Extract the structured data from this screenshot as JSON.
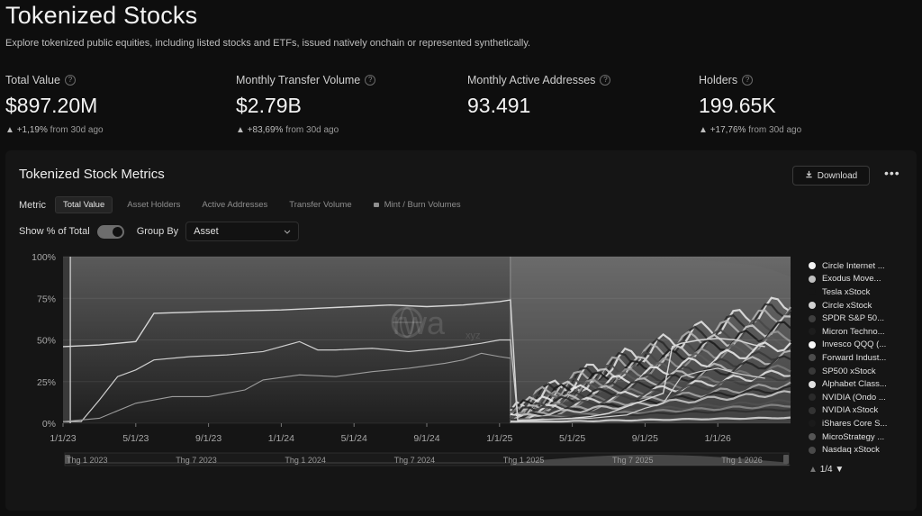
{
  "page": {
    "title": "Tokenized Stocks",
    "subtitle": "Explore tokenized public equities, including listed stocks and ETFs, issued natively onchain or represented synthetically."
  },
  "kpis": [
    {
      "label": "Total Value",
      "value": "$897.20M",
      "change_arrow": "▲",
      "change": "+1,19%",
      "suffix": "from 30d ago"
    },
    {
      "label": "Monthly Transfer Volume",
      "value": "$2.79B",
      "change_arrow": "▲",
      "change": "+83,69%",
      "suffix": "from 30d ago"
    },
    {
      "label": "Monthly Active Addresses",
      "value": "93.491",
      "change_arrow": "",
      "change": "",
      "suffix": ""
    },
    {
      "label": "Holders",
      "value": "199.65K",
      "change_arrow": "▲",
      "change": "+17,76%",
      "suffix": "from 30d ago"
    }
  ],
  "panel": {
    "title": "Tokenized Stock Metrics",
    "download_label": "Download",
    "more_label": "•••",
    "metric_label": "Metric",
    "tabs": [
      {
        "label": "Total Value",
        "active": true
      },
      {
        "label": "Asset Holders",
        "active": false
      },
      {
        "label": "Active Addresses",
        "active": false
      },
      {
        "label": "Transfer Volume",
        "active": false
      },
      {
        "label": "Mint / Burn Volumes",
        "active": false,
        "locked": true
      }
    ],
    "show_pct_label": "Show % of Total",
    "show_pct_on": true,
    "group_by_label": "Group By",
    "group_by_value": "Asset",
    "watermark": "rwa",
    "watermark_suffix": "xyz"
  },
  "chart_data": {
    "type": "area",
    "stacked": true,
    "percent_of_total": true,
    "y_ticks": [
      "0%",
      "25%",
      "50%",
      "75%",
      "100%"
    ],
    "ylim": [
      0,
      100
    ],
    "x_ticks": [
      "1/1/23",
      "5/1/23",
      "9/1/23",
      "1/1/24",
      "5/1/24",
      "9/1/24",
      "1/1/25",
      "5/1/25",
      "9/1/25",
      "1/1/26"
    ],
    "navigator_ticks": [
      "Thg 1 2023",
      "Thg 7 2023",
      "Thg 1 2024",
      "Thg 7 2024",
      "Thg 1 2025",
      "Thg 7 2025",
      "Thg 1 2026"
    ],
    "top_line": [
      [
        0,
        46
      ],
      [
        2,
        47
      ],
      [
        4,
        49
      ],
      [
        5,
        66
      ],
      [
        8,
        67
      ],
      [
        12,
        68
      ],
      [
        14,
        69
      ],
      [
        16,
        70
      ],
      [
        18,
        71
      ],
      [
        20,
        70
      ],
      [
        22,
        71
      ],
      [
        24,
        73
      ],
      [
        24.6,
        74
      ],
      [
        25,
        1.5
      ],
      [
        26,
        2
      ],
      [
        28,
        3
      ],
      [
        29,
        4
      ],
      [
        30,
        6
      ],
      [
        31,
        10
      ],
      [
        32,
        14
      ],
      [
        33,
        18
      ],
      [
        33.5,
        46
      ],
      [
        34,
        48
      ],
      [
        35,
        50
      ],
      [
        36,
        51
      ],
      [
        37,
        50
      ],
      [
        38,
        47
      ],
      [
        38.6,
        46
      ]
    ],
    "mid_line": [
      [
        0,
        1
      ],
      [
        1,
        1
      ],
      [
        2,
        14
      ],
      [
        3,
        28
      ],
      [
        4,
        32
      ],
      [
        5,
        38
      ],
      [
        7,
        40
      ],
      [
        9,
        41
      ],
      [
        11,
        43
      ],
      [
        13,
        49
      ],
      [
        14,
        44
      ],
      [
        15,
        44
      ],
      [
        17,
        45
      ],
      [
        19,
        43
      ],
      [
        21,
        45
      ],
      [
        23,
        48
      ],
      [
        24,
        50
      ],
      [
        24.6,
        50
      ],
      [
        25,
        2
      ],
      [
        27,
        2.5
      ],
      [
        29,
        3
      ],
      [
        31,
        5
      ],
      [
        32,
        9
      ],
      [
        33,
        12
      ],
      [
        34,
        28
      ],
      [
        35,
        31
      ],
      [
        36,
        33
      ],
      [
        37,
        30
      ],
      [
        38,
        28
      ],
      [
        38.6,
        27
      ]
    ],
    "low_line": [
      [
        0,
        1
      ],
      [
        2,
        3
      ],
      [
        4,
        12
      ],
      [
        6,
        16
      ],
      [
        8,
        16
      ],
      [
        10,
        20
      ],
      [
        11,
        26
      ],
      [
        13,
        29
      ],
      [
        15,
        28
      ],
      [
        17,
        31
      ],
      [
        19,
        33
      ],
      [
        21,
        36
      ],
      [
        22,
        38
      ],
      [
        23,
        42
      ],
      [
        24,
        40
      ],
      [
        24.6,
        39
      ]
    ],
    "series": [
      {
        "name": "Circle Internet ...",
        "color": "#f2f2f2"
      },
      {
        "name": "Exodus Move...",
        "color": "#bfbfbf"
      },
      {
        "name": "Tesla xStock",
        "color": "#151515"
      },
      {
        "name": "Circle xStock",
        "color": "#d2d2d2"
      },
      {
        "name": "SPDR S&P 50...",
        "color": "#3f3f3f"
      },
      {
        "name": "Micron Techno...",
        "color": "#1d1d1d"
      },
      {
        "name": "Invesco QQQ (...",
        "color": "#f7f7f7"
      },
      {
        "name": "Forward Indust...",
        "color": "#4d4d4d"
      },
      {
        "name": "SP500 xStock",
        "color": "#383838"
      },
      {
        "name": "Alphabet Class...",
        "color": "#e0e0e0"
      },
      {
        "name": "NVIDIA (Ondo ...",
        "color": "#2a2a2a"
      },
      {
        "name": "NVIDIA xStock",
        "color": "#333333"
      },
      {
        "name": "iShares Core S...",
        "color": "#1a1a1a"
      },
      {
        "name": "MicroStrategy ...",
        "color": "#555555"
      },
      {
        "name": "Nasdaq xStock",
        "color": "#4a4a4a"
      }
    ],
    "legend_page": "1/4"
  }
}
